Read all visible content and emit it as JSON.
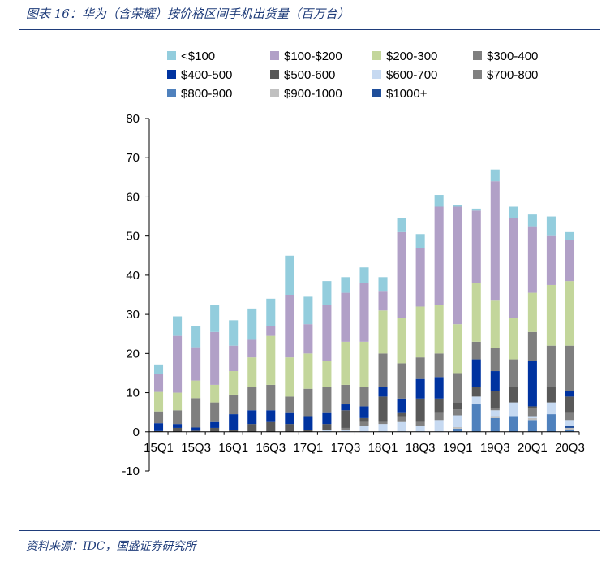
{
  "header": {
    "title": "图表 16：华为（含荣耀）按价格区间手机出货量（百万台）"
  },
  "footer": {
    "source": "资料来源：IDC，国盛证券研究所"
  },
  "chart_data": {
    "type": "bar",
    "stacked": true,
    "title": "华为（含荣耀）按价格区间手机出货量（百万台）",
    "ylim": [
      -10,
      80
    ],
    "yticks": [
      -10,
      0,
      10,
      20,
      30,
      40,
      50,
      60,
      70,
      80
    ],
    "grid": false,
    "legend_position": "top",
    "categories": [
      "15Q1",
      "15Q2",
      "15Q3",
      "15Q4",
      "16Q1",
      "16Q2",
      "16Q3",
      "16Q4",
      "17Q1",
      "17Q2",
      "17Q3",
      "17Q4",
      "18Q1",
      "18Q2",
      "18Q3",
      "18Q4",
      "19Q1",
      "19Q2",
      "19Q3",
      "19Q4",
      "20Q1",
      "20Q2",
      "20Q3"
    ],
    "tick_labels": [
      "15Q1",
      "",
      "15Q3",
      "",
      "16Q1",
      "",
      "16Q3",
      "",
      "17Q1",
      "",
      "17Q3",
      "",
      "18Q1",
      "",
      "18Q3",
      "",
      "19Q1",
      "",
      "19Q3",
      "",
      "20Q1",
      "",
      "20Q3"
    ],
    "series": [
      {
        "name": "$800-900",
        "color": "#4f81bd",
        "values": [
          0,
          0,
          0,
          0,
          0,
          0,
          0,
          0,
          0,
          0,
          0,
          0,
          0,
          0,
          0,
          0,
          0.8,
          7,
          3.5,
          4,
          3,
          4.5,
          0.5
        ]
      },
      {
        "name": "$900-1000",
        "color": "#c0c0c0",
        "values": [
          0,
          0,
          0,
          0,
          0,
          0,
          0,
          0,
          0,
          0,
          0,
          0,
          0,
          0,
          0,
          0,
          0.4,
          0,
          0.5,
          0,
          0.5,
          0,
          0.5
        ]
      },
      {
        "name": "$1000+",
        "color": "#1f4e9a",
        "values": [
          0,
          0,
          0,
          0,
          0,
          0,
          0,
          0,
          0,
          0,
          0,
          0,
          0,
          0,
          0,
          0,
          0,
          0,
          0,
          0,
          0,
          0,
          0.5
        ]
      },
      {
        "name": "$600-700",
        "color": "#c6d9f1",
        "values": [
          0,
          0,
          0,
          0,
          0,
          0,
          0,
          0,
          0,
          0.5,
          0.5,
          1.5,
          2,
          2.5,
          1.5,
          3,
          3,
          2,
          1.5,
          3.5,
          0.5,
          3,
          1.5
        ]
      },
      {
        "name": "$700-800",
        "color": "#808080",
        "values": [
          0,
          0,
          0,
          0,
          0,
          0,
          0,
          0,
          0,
          0,
          0.5,
          1,
          0.5,
          1.5,
          1,
          2,
          1.5,
          0,
          0.5,
          0,
          2,
          0,
          2
        ]
      },
      {
        "name": "$500-600",
        "color": "#595959",
        "values": [
          0.2,
          1,
          0.3,
          1,
          0.5,
          2,
          2.5,
          2,
          0.5,
          1.5,
          4.5,
          1,
          6.5,
          1,
          6,
          3.5,
          1.8,
          2.5,
          4.5,
          4,
          0.5,
          4,
          4
        ]
      },
      {
        "name": "$400-500",
        "color": "#0033a0",
        "values": [
          2,
          1,
          0.8,
          1.5,
          4,
          3.5,
          3,
          3,
          3.5,
          3,
          1.5,
          3,
          2.5,
          3.5,
          5,
          5.5,
          0,
          7,
          5,
          0,
          11.5,
          0,
          1.5
        ]
      },
      {
        "name": "$300-400",
        "color": "#7f7f7f",
        "values": [
          3,
          3.5,
          7.5,
          5,
          5,
          6,
          6.5,
          4,
          7,
          6.5,
          5,
          5,
          8.5,
          9,
          5.5,
          6,
          7.5,
          4.5,
          6,
          7,
          7.5,
          10.5,
          11.5
        ]
      },
      {
        "name": "$200-300",
        "color": "#c3d69b",
        "values": [
          5,
          4.5,
          4.5,
          4.5,
          6,
          7.5,
          12.5,
          10,
          9,
          6.5,
          11,
          11.5,
          11,
          11.5,
          13,
          12.5,
          12.5,
          15,
          12,
          10.5,
          10,
          15.5,
          16.5
        ]
      },
      {
        "name": "$100-$200",
        "color": "#b1a0c7",
        "values": [
          4.5,
          14.5,
          8.5,
          13.5,
          6.5,
          4.5,
          2.5,
          16,
          7.5,
          14.5,
          12.5,
          15,
          5,
          22,
          15,
          25,
          30,
          18.5,
          30.5,
          25.5,
          17,
          12.5,
          10.5
        ]
      },
      {
        "name": "<$100",
        "color": "#93cddd",
        "values": [
          2.5,
          5,
          5.5,
          7,
          6.5,
          8,
          7,
          10,
          7,
          6,
          4,
          4,
          3.5,
          3.5,
          3.5,
          3,
          0.5,
          0.5,
          3,
          3,
          3,
          5,
          2
        ]
      }
    ]
  },
  "legend": {
    "rows": [
      [
        {
          "label": "<$100",
          "color": "#93cddd"
        },
        {
          "label": "$100-$200",
          "color": "#b1a0c7"
        },
        {
          "label": "$200-300",
          "color": "#c3d69b"
        },
        {
          "label": "$300-400",
          "color": "#7f7f7f"
        }
      ],
      [
        {
          "label": "$400-500",
          "color": "#0033a0"
        },
        {
          "label": "$500-600",
          "color": "#595959"
        },
        {
          "label": "$600-700",
          "color": "#c6d9f1"
        },
        {
          "label": "$700-800",
          "color": "#808080"
        }
      ],
      [
        {
          "label": "$800-900",
          "color": "#4f81bd"
        },
        {
          "label": "$900-1000",
          "color": "#c0c0c0"
        },
        {
          "label": "$1000+",
          "color": "#1f4e9a"
        }
      ]
    ]
  }
}
